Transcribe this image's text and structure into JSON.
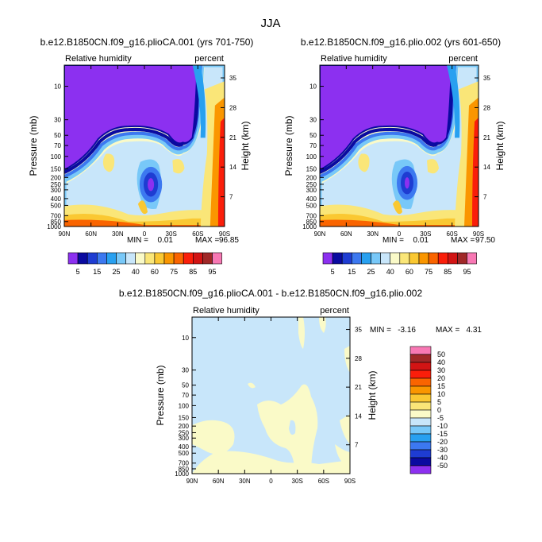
{
  "page_title": "JJA",
  "chart_data": [
    {
      "type": "heatmap",
      "title": "b.e12.B1850CN.f09_g16.plioCA.001 (yrs 701-750)",
      "left_string": "Relative humidity",
      "right_string": "percent",
      "ylabel": "Pressure (mb)",
      "ylabel_right": "Height (km)",
      "x_ticks": [
        "90N",
        "60N",
        "30N",
        "0",
        "30S",
        "60S",
        "90S"
      ],
      "y_ticks": [
        "10",
        "30",
        "50",
        "70",
        "100",
        "150",
        "200",
        "250",
        "300",
        "400",
        "500",
        "700",
        "850",
        "1000"
      ],
      "y_ticks_right": [
        "35",
        "28",
        "21",
        "14",
        "7"
      ],
      "min_label": "MIN =",
      "min": "0.01",
      "max_label": "MAX =",
      "max": "96.85"
    },
    {
      "type": "heatmap",
      "title": "b.e12.B1850CN.f09_g16.plio.002 (yrs 601-650)",
      "left_string": "Relative humidity",
      "right_string": "percent",
      "ylabel": "Pressure (mb)",
      "ylabel_right": "Height (km)",
      "x_ticks": [
        "90N",
        "60N",
        "30N",
        "0",
        "30S",
        "60S",
        "90S"
      ],
      "y_ticks": [
        "10",
        "30",
        "50",
        "70",
        "100",
        "150",
        "200",
        "250",
        "300",
        "400",
        "500",
        "700",
        "850",
        "1000"
      ],
      "y_ticks_right": [
        "35",
        "28",
        "21",
        "14",
        "7"
      ],
      "min_label": "MIN =",
      "min": "0.01",
      "max_label": "MAX =",
      "max": "97.50"
    },
    {
      "type": "heatmap",
      "title": "b.e12.B1850CN.f09_g16.plioCA.001 - b.e12.B1850CN.f09_g16.plio.002",
      "left_string": "Relative humidity",
      "right_string": "percent",
      "ylabel": "Pressure (mb)",
      "ylabel_right": "Height (km)",
      "x_ticks": [
        "90N",
        "60N",
        "30N",
        "0",
        "30S",
        "60S",
        "90S"
      ],
      "y_ticks": [
        "10",
        "30",
        "50",
        "70",
        "100",
        "150",
        "200",
        "250",
        "300",
        "400",
        "500",
        "700",
        "850",
        "1000"
      ],
      "y_ticks_right": [
        "35",
        "28",
        "21",
        "14",
        "7"
      ],
      "min_label": "MIN =",
      "min": "-3.16",
      "max_label": "MAX =",
      "max": "4.31"
    }
  ],
  "colorbars": {
    "rh": {
      "labels": [
        "5",
        "15",
        "25",
        "40",
        "60",
        "75",
        "85",
        "95"
      ],
      "colors": [
        "#8c30f0",
        "#0a0aa0",
        "#1e3cd2",
        "#3c78f0",
        "#28a0f0",
        "#78c8f8",
        "#c8e6fa",
        "#fafac8",
        "#fae678",
        "#fac832",
        "#fa9600",
        "#fa6400",
        "#fa1e0a",
        "#d21414",
        "#a02828",
        "#f878b4"
      ]
    },
    "diff": {
      "labels": [
        "50",
        "40",
        "30",
        "20",
        "15",
        "10",
        "5",
        "0",
        "-5",
        "-10",
        "-15",
        "-20",
        "-30",
        "-40",
        "-50"
      ],
      "colors": [
        "#f878b4",
        "#a02828",
        "#d21414",
        "#fa1e0a",
        "#fa6400",
        "#fa9600",
        "#fac832",
        "#fae678",
        "#fafac8",
        "#c8e6fa",
        "#78c8f8",
        "#28a0f0",
        "#3c78f0",
        "#1e3cd2",
        "#0a0aa0",
        "#8c30f0"
      ]
    }
  }
}
